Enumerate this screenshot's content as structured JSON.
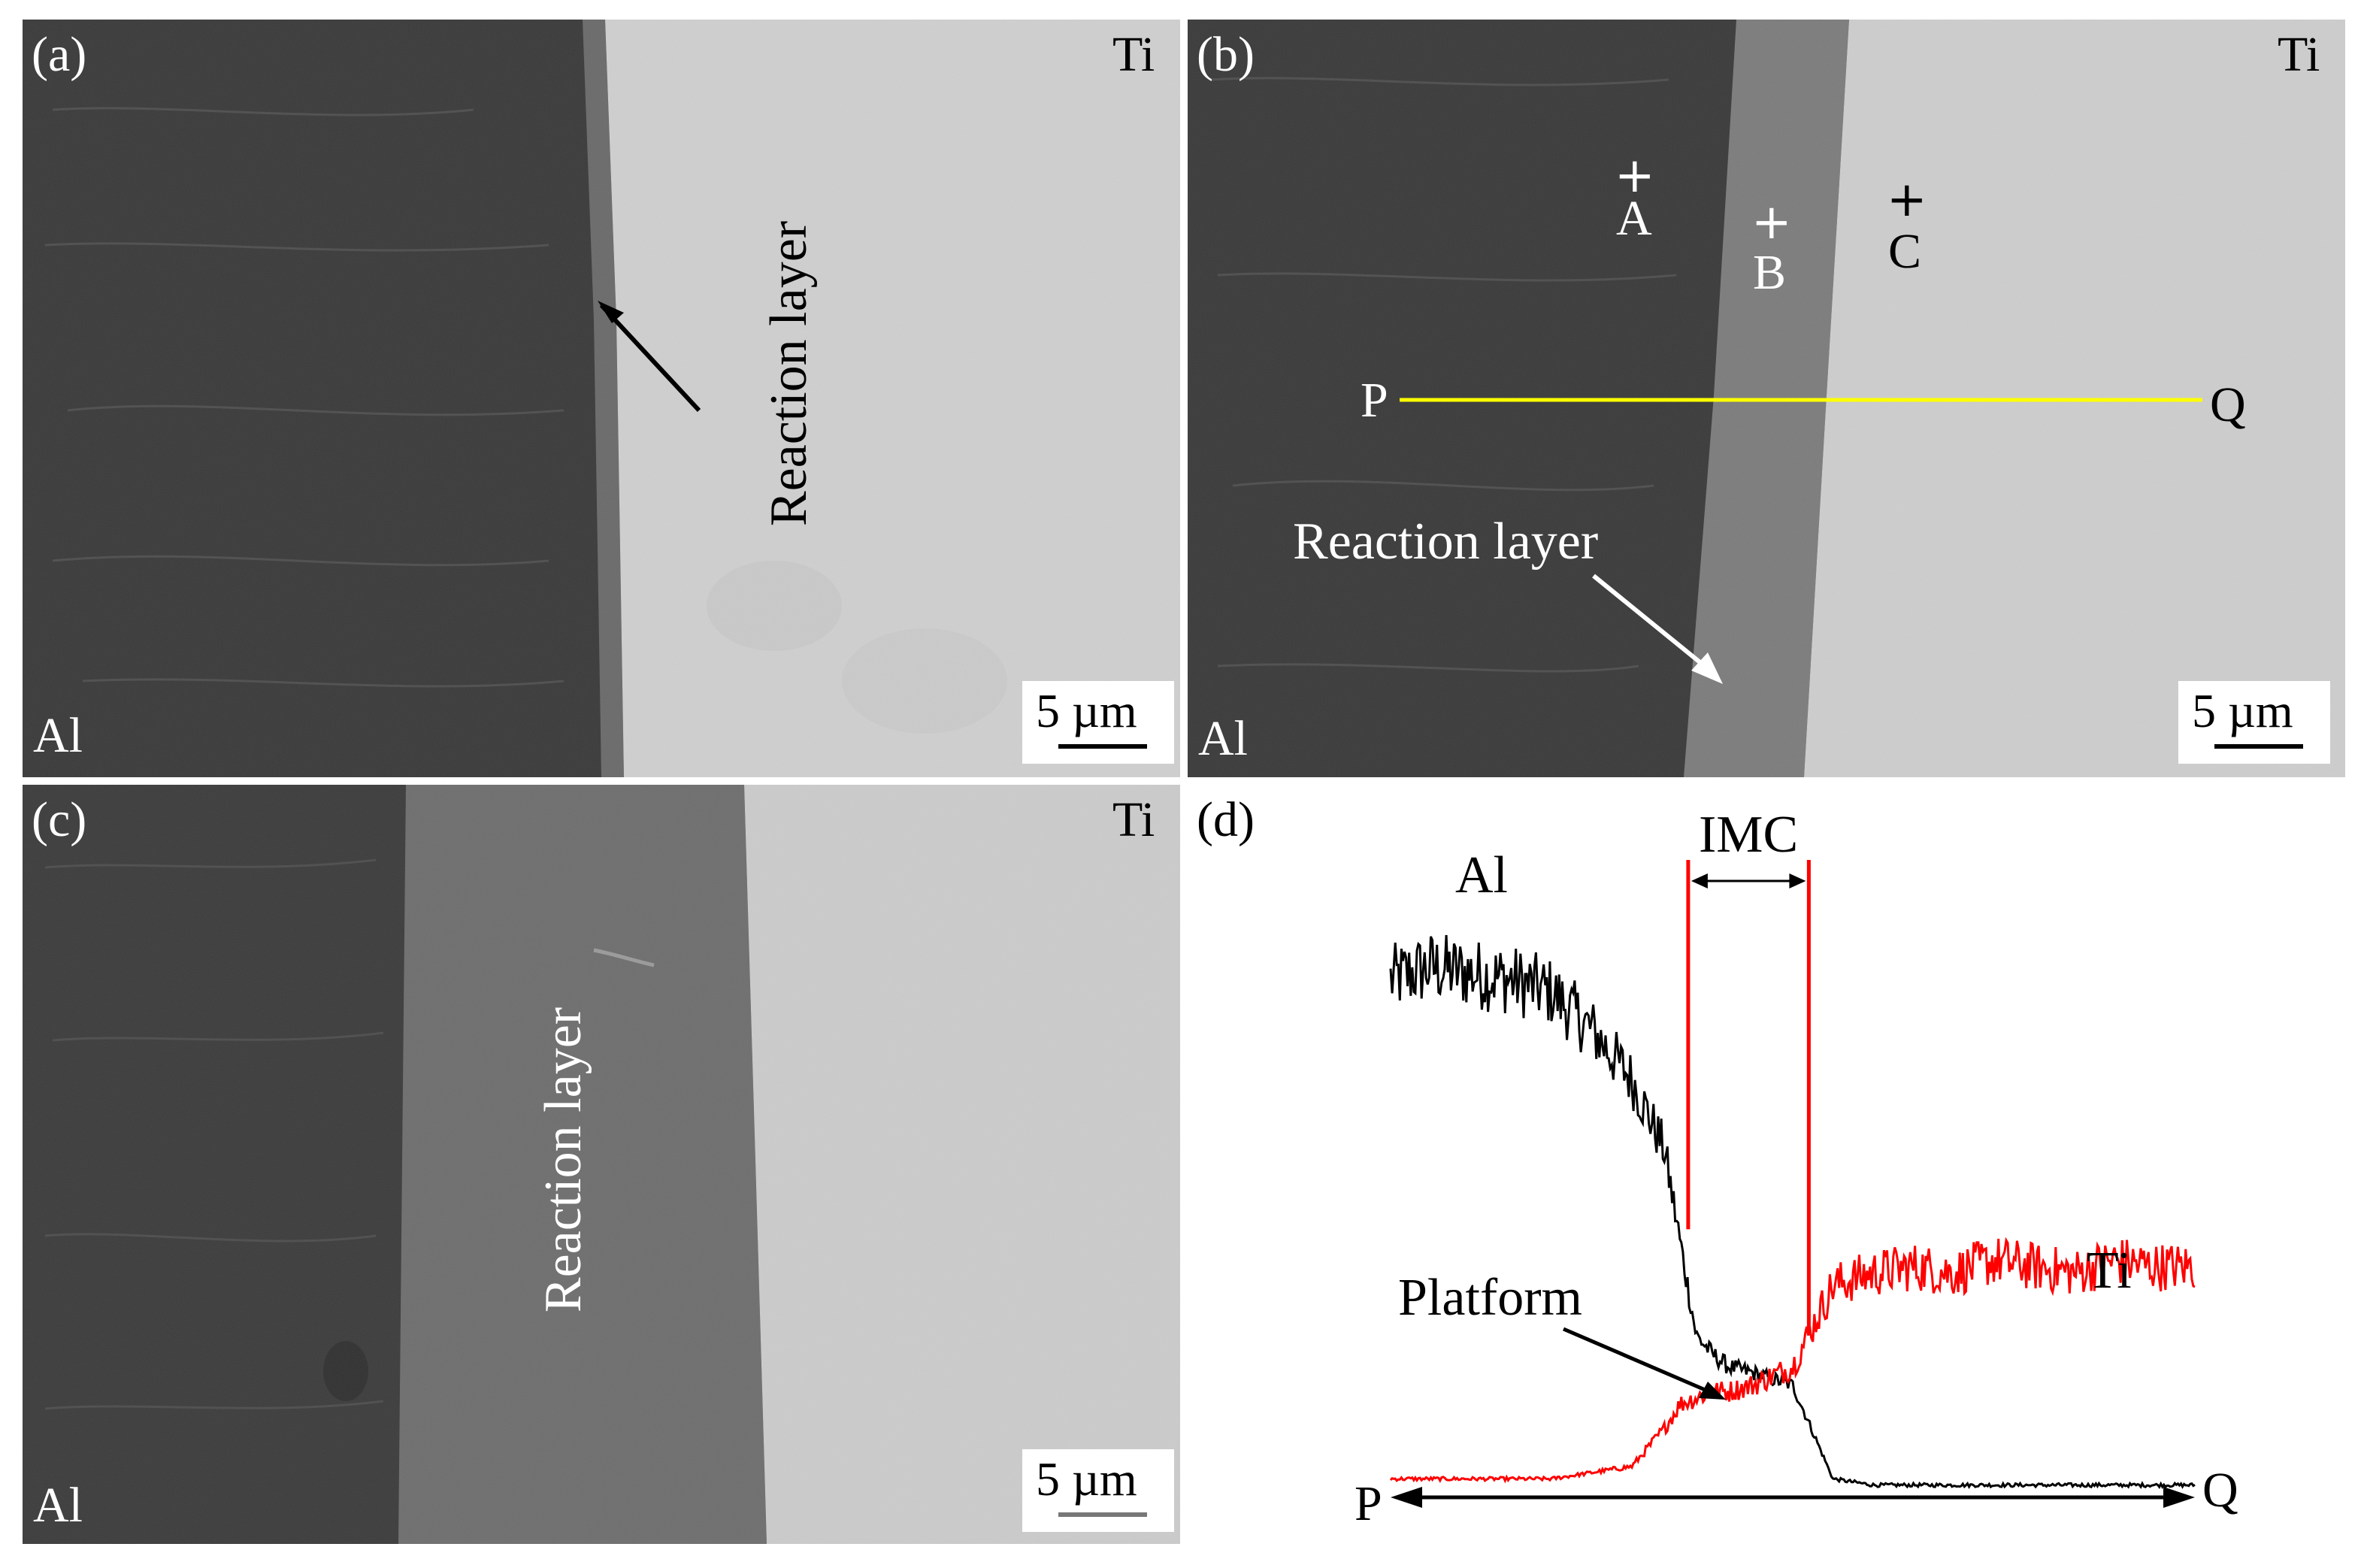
{
  "panels": {
    "a": {
      "label": "(a)",
      "left_material": "Al",
      "right_material": "Ti",
      "annotation": "Reaction layer",
      "scale": "5 µm"
    },
    "b": {
      "label": "(b)",
      "left_material": "Al",
      "right_material": "Ti",
      "annotation": "Reaction layer",
      "scale": "5 µm",
      "points": [
        "A",
        "B",
        "C"
      ],
      "line_start": "P",
      "line_end": "Q"
    },
    "c": {
      "label": "(c)",
      "left_material": "Al",
      "right_material": "Ti",
      "annotation": "Reaction layer",
      "scale": "5 µm"
    },
    "d": {
      "label": "(d)",
      "al_label": "Al",
      "ti_label": "Ti",
      "imc_label": "IMC",
      "platform_label": "Platform",
      "axis_start": "P",
      "axis_end": "Q"
    }
  },
  "colors": {
    "al_region": "#3a3a3a",
    "reaction_layer_b": "#7c7c7c",
    "reaction_layer_c": "#6e6e6e",
    "ti_region": "#cdcdcd",
    "scan_line": "#ffff00",
    "ti_curve": "#ff0000",
    "al_curve": "#000000",
    "imc_marker": "#ff0000"
  },
  "chart_data": {
    "type": "line",
    "title": "",
    "xlabel": "",
    "ylabel": "",
    "series": [
      {
        "name": "Al",
        "x": [
          0,
          5,
          10,
          15,
          20,
          25,
          30,
          34,
          36,
          38,
          40,
          42,
          45,
          50,
          55,
          60,
          65,
          70,
          75,
          80,
          85,
          90,
          95,
          100
        ],
        "y": [
          0.82,
          0.84,
          0.83,
          0.82,
          0.8,
          0.74,
          0.66,
          0.55,
          0.4,
          0.25,
          0.22,
          0.2,
          0.19,
          0.17,
          0.02,
          0.01,
          0.01,
          0.01,
          0.01,
          0.01,
          0.01,
          0.01,
          0.01,
          0.01
        ]
      },
      {
        "name": "Ti",
        "x": [
          0,
          5,
          10,
          15,
          20,
          25,
          30,
          34,
          36,
          38,
          40,
          42,
          45,
          50,
          55,
          60,
          65,
          70,
          75,
          80,
          85,
          90,
          95,
          100
        ],
        "y": [
          0.02,
          0.02,
          0.02,
          0.02,
          0.02,
          0.03,
          0.04,
          0.1,
          0.14,
          0.15,
          0.16,
          0.16,
          0.17,
          0.2,
          0.33,
          0.35,
          0.36,
          0.35,
          0.37,
          0.36,
          0.35,
          0.37,
          0.36,
          0.36
        ]
      }
    ],
    "imc_boundaries": [
      37,
      52
    ]
  }
}
